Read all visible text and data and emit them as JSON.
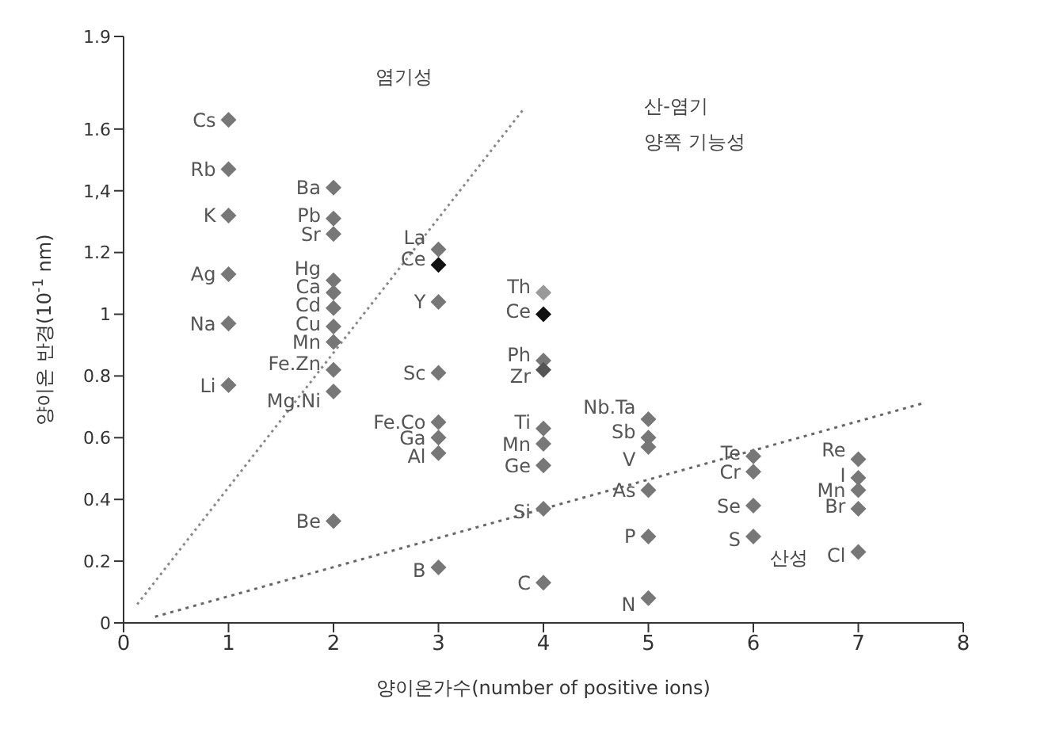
{
  "chart_data": {
    "type": "scatter",
    "xlabel": "양이온가수(number of positive ions)",
    "ylabel": "양이온 반경(10$^{-1}$ nm)",
    "xlim": [
      0,
      8
    ],
    "xticks": [
      0,
      1,
      2,
      3,
      4,
      5,
      6,
      7,
      8
    ],
    "ylim": [
      0,
      1.9
    ],
    "yticks": [
      0,
      0.2,
      0.4,
      0.6,
      0.8,
      1,
      1.2,
      {
        "value": 1.4,
        "label": "1,4"
      },
      1.6,
      1.9
    ],
    "grid": false,
    "legend": false,
    "marker": "diamond",
    "series": [
      {
        "color": "#777777",
        "x": [
          1,
          1,
          1,
          1,
          1,
          1,
          2,
          2,
          2,
          2,
          2,
          2,
          2,
          2,
          2,
          2,
          2,
          3,
          3,
          3,
          3,
          3,
          3,
          3,
          3,
          4,
          4,
          4,
          4,
          4,
          4,
          4,
          4,
          4,
          5,
          5,
          5,
          5,
          5,
          5,
          6,
          6,
          6,
          6,
          7,
          7,
          7,
          7,
          7
        ],
        "values": [
          1.63,
          1.47,
          1.32,
          1.13,
          0.97,
          0.77,
          1.41,
          1.31,
          1.26,
          1.11,
          1.07,
          1.02,
          0.96,
          0.91,
          0.82,
          0.75,
          0.33,
          1.21,
          1.16,
          1.04,
          0.81,
          0.65,
          0.6,
          0.55,
          0.18,
          1.07,
          1,
          0.85,
          0.82,
          0.63,
          0.58,
          0.51,
          0.37,
          0.13,
          0.66,
          0.6,
          0.57,
          0.43,
          0.28,
          0.08,
          0.54,
          0.49,
          0.38,
          0.28,
          0.53,
          0.47,
          0.43,
          0.37,
          0.23
        ],
        "colors": [
          "#777777",
          "#777777",
          "#777777",
          "#777777",
          "#777777",
          "#777777",
          "#777777",
          "#777777",
          "#777777",
          "#777777",
          "#777777",
          "#777777",
          "#777777",
          "#777777",
          "#777777",
          "#777777",
          "#777777",
          "#777777",
          "#111111",
          "#777777",
          "#777777",
          "#777777",
          "#777777",
          "#777777",
          "#777777",
          "#999999",
          "#111111",
          "#777777",
          "#555555",
          "#777777",
          "#777777",
          "#777777",
          "#777777",
          "#777777",
          "#777777",
          "#777777",
          "#777777",
          "#777777",
          "#777777",
          "#777777",
          "#777777",
          "#777777",
          "#777777",
          "#777777",
          "#777777",
          "#777777",
          "#777777",
          "#777777",
          "#777777"
        ]
      },
      {
        "type": "line",
        "color": "#888888",
        "marker": "none",
        "line_style": "dotted",
        "x": [
          0.13,
          3.8
        ],
        "values": [
          0.06,
          1.66
        ]
      },
      {
        "type": "line",
        "color": "#666666",
        "marker": "none",
        "line_style": "dotted",
        "x": [
          0.3,
          7.6
        ],
        "values": [
          0.02,
          0.71
        ]
      }
    ],
    "annotations": [
      {
        "text": "Cs",
        "x": 1,
        "y": 1.63
      },
      {
        "text": "Rb",
        "x": 1,
        "y": 1.47
      },
      {
        "text": "K",
        "x": 1,
        "y": 1.32
      },
      {
        "text": "Ag",
        "x": 1,
        "y": 1.13
      },
      {
        "text": "Na",
        "x": 1,
        "y": 0.97
      },
      {
        "text": "Li",
        "x": 1,
        "y": 0.77
      },
      {
        "text": "Ba",
        "x": 2,
        "y": 1.41
      },
      {
        "text": "Pb",
        "x": 2,
        "y": 1.32
      },
      {
        "text": "Sr",
        "x": 2,
        "y": 1.26
      },
      {
        "text": "Hg",
        "x": 2,
        "y": 1.15
      },
      {
        "text": "Ca",
        "x": 2,
        "y": 1.09
      },
      {
        "text": "Cd",
        "x": 2,
        "y": 1.03
      },
      {
        "text": "Cu",
        "x": 2,
        "y": 0.97
      },
      {
        "text": "Mn",
        "x": 2,
        "y": 0.91
      },
      {
        "text": "Fe.Zn",
        "x": 2,
        "y": 0.84
      },
      {
        "text": "Mg.Ni",
        "x": 2,
        "y": 0.72
      },
      {
        "text": "Be",
        "x": 2,
        "y": 0.33
      },
      {
        "text": "La",
        "x": 3,
        "y": 1.25
      },
      {
        "text": "Ce",
        "x": 3,
        "y": 1.18
      },
      {
        "text": "Y",
        "x": 3,
        "y": 1.04
      },
      {
        "text": "Sc",
        "x": 3,
        "y": 0.81
      },
      {
        "text": "Fe.Co",
        "x": 3,
        "y": 0.65
      },
      {
        "text": "Ga",
        "x": 3,
        "y": 0.6
      },
      {
        "text": "Al",
        "x": 3,
        "y": 0.54
      },
      {
        "text": "B",
        "x": 3,
        "y": 0.17
      },
      {
        "text": "Th",
        "x": 4,
        "y": 1.09
      },
      {
        "text": "Ce",
        "x": 4,
        "y": 1.01
      },
      {
        "text": "Ph",
        "x": 4,
        "y": 0.87
      },
      {
        "text": "Zr",
        "x": 4,
        "y": 0.8
      },
      {
        "text": "Ti",
        "x": 4,
        "y": 0.65
      },
      {
        "text": "Mn",
        "x": 4,
        "y": 0.58
      },
      {
        "text": "Ge",
        "x": 4,
        "y": 0.51
      },
      {
        "text": "Si",
        "x": 4,
        "y": 0.36
      },
      {
        "text": "C",
        "x": 4,
        "y": 0.13
      },
      {
        "text": "Nb.Ta",
        "x": 5,
        "y": 0.7
      },
      {
        "text": "Sb",
        "x": 5,
        "y": 0.62
      },
      {
        "text": "V",
        "x": 5,
        "y": 0.53
      },
      {
        "text": "As",
        "x": 5,
        "y": 0.43
      },
      {
        "text": "P",
        "x": 5,
        "y": 0.28
      },
      {
        "text": "N",
        "x": 5,
        "y": 0.06
      },
      {
        "text": "Te",
        "x": 6,
        "y": 0.55
      },
      {
        "text": "Cr",
        "x": 6,
        "y": 0.49
      },
      {
        "text": "Se",
        "x": 6,
        "y": 0.38
      },
      {
        "text": "S",
        "x": 6,
        "y": 0.27
      },
      {
        "text": "Re",
        "x": 7,
        "y": 0.56
      },
      {
        "text": "I",
        "x": 7,
        "y": 0.48
      },
      {
        "text": "Mn",
        "x": 7,
        "y": 0.43
      },
      {
        "text": "Br",
        "x": 7,
        "y": 0.38
      },
      {
        "text": "Cl",
        "x": 7,
        "y": 0.22
      },
      "염기성",
      "산-염기",
      "양쪽 기능성",
      "산성"
    ]
  }
}
